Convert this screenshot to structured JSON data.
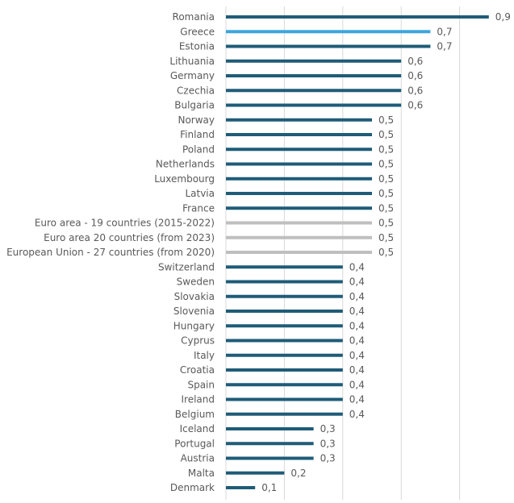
{
  "chart_data": {
    "type": "bar",
    "orientation": "horizontal",
    "title": "",
    "xlabel": "",
    "ylabel": "",
    "xlim": [
      0,
      1.0
    ],
    "grid": true,
    "gridlines_at": [
      0,
      0.2,
      0.4,
      0.6,
      0.8,
      1.0
    ],
    "value_labels": [
      "0,9",
      "0,7",
      "0,7",
      "0,6",
      "0,6",
      "0,6",
      "0,6",
      "0,5",
      "0,5",
      "0,5",
      "0,5",
      "0,5",
      "0,5",
      "0,5",
      "0,5",
      "0,5",
      "0,5",
      "0,4",
      "0,4",
      "0,4",
      "0,4",
      "0,4",
      "0,4",
      "0,4",
      "0,4",
      "0,4",
      "0,4",
      "0,4",
      "0,3",
      "0,3",
      "0,3",
      "0,2",
      "0,1"
    ],
    "categories": [
      "Romania",
      "Greece",
      "Estonia",
      "Lithuania",
      "Germany",
      "Czechia",
      "Bulgaria",
      "Norway",
      "Finland",
      "Poland",
      "Netherlands",
      "Luxembourg",
      "Latvia",
      "France",
      "Euro area - 19 countries  (2015-2022)",
      "Euro area    20 countries (from 2023)",
      "European Union - 27 countries (from 2020)",
      "Switzerland",
      "Sweden",
      "Slovakia",
      "Slovenia",
      "Hungary",
      "Cyprus",
      "Italy",
      "Croatia",
      "Spain",
      "Ireland",
      "Belgium",
      "Iceland",
      "Portugal",
      "Austria",
      "Malta",
      "Denmark"
    ],
    "values": [
      0.9,
      0.7,
      0.7,
      0.6,
      0.6,
      0.6,
      0.6,
      0.5,
      0.5,
      0.5,
      0.5,
      0.5,
      0.5,
      0.5,
      0.5,
      0.5,
      0.5,
      0.4,
      0.4,
      0.4,
      0.4,
      0.4,
      0.4,
      0.4,
      0.4,
      0.4,
      0.4,
      0.4,
      0.3,
      0.3,
      0.3,
      0.2,
      0.1
    ],
    "bar_roles": [
      "country",
      "highlight",
      "country",
      "country",
      "country",
      "country",
      "country",
      "country",
      "country",
      "country",
      "country",
      "country",
      "country",
      "country",
      "aggregate",
      "aggregate",
      "aggregate",
      "country",
      "country",
      "country",
      "country",
      "country",
      "country",
      "country",
      "country",
      "country",
      "country",
      "country",
      "country",
      "country",
      "country",
      "country",
      "country"
    ],
    "colors": {
      "country": "#1f5c78",
      "highlight": "#3da5dc",
      "aggregate": "#bfbfbf",
      "grid": "#d9d9d9",
      "label": "#595959"
    }
  }
}
